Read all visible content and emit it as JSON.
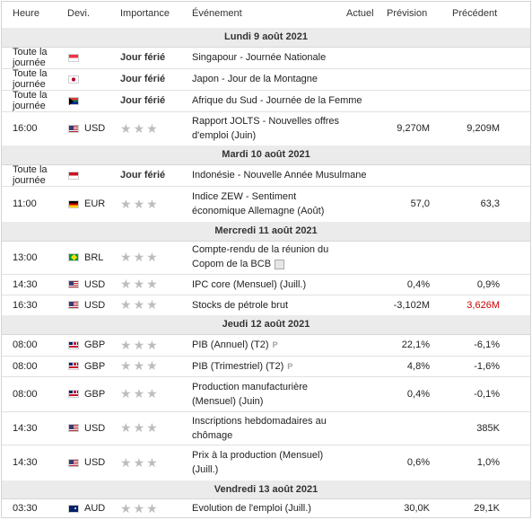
{
  "header": {
    "time": "Heure",
    "currency": "Devi.",
    "importance": "Importance",
    "event": "Événement",
    "actual": "Actuel",
    "forecast": "Prévision",
    "previous": "Précédent"
  },
  "rows": [
    {
      "type": "day",
      "label": "Lundi 9 août 2021"
    },
    {
      "type": "event",
      "time": "Toute la journée",
      "flag": "singapore-flag",
      "currency": "",
      "importance_label": "Jour férié",
      "event": "Singapour - Journée Nationale",
      "forecast": "",
      "previous": ""
    },
    {
      "type": "event",
      "time": "Toute la journée",
      "flag": "japan-flag",
      "currency": "",
      "importance_label": "Jour férié",
      "event": "Japon - Jour de la Montagne",
      "forecast": "",
      "previous": ""
    },
    {
      "type": "event",
      "time": "Toute la journée",
      "flag": "south-africa-flag",
      "currency": "",
      "importance_label": "Jour férié",
      "event": "Afrique du Sud - Journée de la Femme",
      "forecast": "",
      "previous": ""
    },
    {
      "type": "event",
      "time": "16:00",
      "flag": "us-flag",
      "currency": "USD",
      "stars": 3,
      "event": "Rapport JOLTS - Nouvelles offres d'emploi (Juin)",
      "forecast": "9,270M",
      "previous": "9,209M"
    },
    {
      "type": "day",
      "label": "Mardi 10 août 2021"
    },
    {
      "type": "event",
      "time": "Toute la journée",
      "flag": "indonesia-flag",
      "currency": "",
      "importance_label": "Jour férié",
      "event": "Indonésie - Nouvelle Année Musulmane",
      "forecast": "",
      "previous": ""
    },
    {
      "type": "event",
      "time": "11:00",
      "flag": "germany-flag",
      "currency": "EUR",
      "stars": 3,
      "event": "Indice ZEW - Sentiment économique Allemagne (Août)",
      "forecast": "57,0",
      "previous": "63,3"
    },
    {
      "type": "day",
      "label": "Mercredi 11 août 2021"
    },
    {
      "type": "event",
      "time": "13:00",
      "flag": "brazil-flag",
      "currency": "BRL",
      "stars": 3,
      "event": "Compte-rendu de la réunion du Copom de la BCB",
      "has_doc": true,
      "forecast": "",
      "previous": ""
    },
    {
      "type": "event",
      "time": "14:30",
      "flag": "us-flag",
      "currency": "USD",
      "stars": 3,
      "event": "IPC core (Mensuel) (Juill.)",
      "forecast": "0,4%",
      "previous": "0,9%"
    },
    {
      "type": "event",
      "time": "16:30",
      "flag": "us-flag",
      "currency": "USD",
      "stars": 3,
      "event": "Stocks de pétrole brut",
      "forecast": "-3,102M",
      "previous": "3,626M",
      "previous_color": "#cc0000"
    },
    {
      "type": "day",
      "label": "Jeudi 12 août 2021"
    },
    {
      "type": "event",
      "time": "08:00",
      "flag": "uk-flag",
      "currency": "GBP",
      "stars": 3,
      "event": "PIB (Annuel) (T2)",
      "has_prelim": true,
      "prelim_label": "P",
      "forecast": "22,1%",
      "previous": "-6,1%"
    },
    {
      "type": "event",
      "time": "08:00",
      "flag": "uk-flag",
      "currency": "GBP",
      "stars": 3,
      "event": "PIB (Trimestriel) (T2)",
      "has_prelim": true,
      "prelim_label": "P",
      "forecast": "4,8%",
      "previous": "-1,6%"
    },
    {
      "type": "event",
      "time": "08:00",
      "flag": "uk-flag",
      "currency": "GBP",
      "stars": 3,
      "event": "Production manufacturière (Mensuel) (Juin)",
      "forecast": "0,4%",
      "previous": "-0,1%"
    },
    {
      "type": "event",
      "time": "14:30",
      "flag": "us-flag",
      "currency": "USD",
      "stars": 3,
      "event": "Inscriptions hebdomadaires au chômage",
      "forecast": "",
      "previous": "385K"
    },
    {
      "type": "event",
      "time": "14:30",
      "flag": "us-flag",
      "currency": "USD",
      "stars": 3,
      "event": "Prix à la production (Mensuel) (Juill.)",
      "forecast": "0,6%",
      "previous": "1,0%"
    },
    {
      "type": "day",
      "label": "Vendredi 13 août 2021"
    },
    {
      "type": "event",
      "time": "03:30",
      "flag": "australia-flag",
      "currency": "AUD",
      "stars": 3,
      "event": "Evolution de l'emploi (Juill.)",
      "forecast": "30,0K",
      "previous": "29,1K"
    }
  ]
}
